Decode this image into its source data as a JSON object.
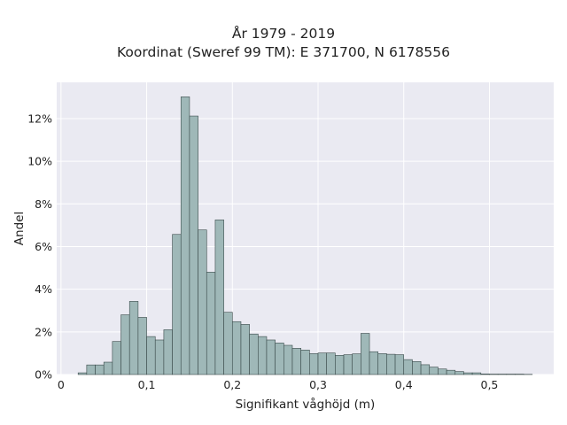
{
  "chart_data": {
    "type": "bar",
    "title_lines": [
      "År 1979 - 2019",
      "Koordinat (Sweref 99 TM): E 371700, N 6178556"
    ],
    "xlabel": "Signifikant våghöjd (m)",
    "ylabel": "Andel",
    "xlim": [
      -0.005,
      0.575
    ],
    "ylim": [
      0,
      0.137
    ],
    "x_ticks": [
      0,
      0.1,
      0.2,
      0.3,
      0.4,
      0.5
    ],
    "x_tick_labels": [
      "0",
      "0,1",
      "0,2",
      "0,3",
      "0,4",
      "0,5"
    ],
    "y_ticks": [
      0,
      0.02,
      0.04,
      0.06,
      0.08,
      0.1,
      0.12
    ],
    "y_tick_labels": [
      "0%",
      "2%",
      "4%",
      "6%",
      "8%",
      "10%",
      "12%"
    ],
    "grid": true,
    "background": "#eaeaf2",
    "bar_fill": "#9fb8b8",
    "bar_edge": "#3a4a4a",
    "bin_width": 0.01,
    "bin_starts": [
      0.02,
      0.03,
      0.04,
      0.05,
      0.06,
      0.07,
      0.08,
      0.09,
      0.1,
      0.11,
      0.12,
      0.13,
      0.14,
      0.15,
      0.16,
      0.17,
      0.18,
      0.19,
      0.2,
      0.21,
      0.22,
      0.23,
      0.24,
      0.25,
      0.26,
      0.27,
      0.28,
      0.29,
      0.3,
      0.31,
      0.32,
      0.33,
      0.34,
      0.35,
      0.36,
      0.37,
      0.38,
      0.39,
      0.4,
      0.41,
      0.42,
      0.43,
      0.44,
      0.45,
      0.46,
      0.47,
      0.48,
      0.49,
      0.5,
      0.51,
      0.52,
      0.53,
      0.54
    ],
    "values": [
      0.0008,
      0.0045,
      0.0045,
      0.0058,
      0.0155,
      0.028,
      0.0343,
      0.0268,
      0.0178,
      0.0162,
      0.021,
      0.0657,
      0.1302,
      0.1212,
      0.0678,
      0.048,
      0.0725,
      0.0292,
      0.0248,
      0.0235,
      0.019,
      0.0178,
      0.0162,
      0.0148,
      0.0137,
      0.0123,
      0.0115,
      0.0098,
      0.0101,
      0.0101,
      0.009,
      0.0093,
      0.0097,
      0.0193,
      0.0107,
      0.0098,
      0.0095,
      0.0093,
      0.007,
      0.0061,
      0.0046,
      0.0035,
      0.0026,
      0.002,
      0.0014,
      0.0008,
      0.0008,
      0.0003,
      0.0002,
      0.0002,
      0.0002,
      0.0002,
      0.0001
    ]
  }
}
